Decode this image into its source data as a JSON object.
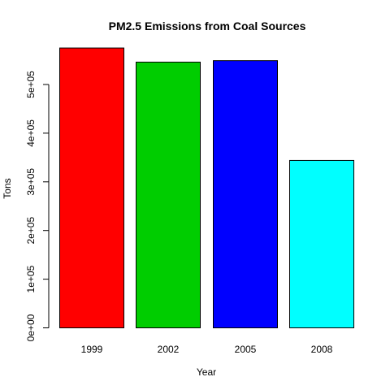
{
  "chart_data": {
    "type": "bar",
    "title": "PM2.5 Emissions from Coal Sources",
    "xlabel": "Year",
    "ylabel": "Tons",
    "categories": [
      "1999",
      "2002",
      "2005",
      "2008"
    ],
    "values": [
      575000,
      546000,
      549000,
      344000
    ],
    "bar_colors": [
      "#ff0000",
      "#00cd00",
      "#0000ff",
      "#00ffff"
    ],
    "ylim": [
      0,
      575000
    ],
    "yticks": [
      0,
      100000,
      200000,
      300000,
      400000,
      500000
    ],
    "ytick_labels": [
      "0e+00",
      "1e+05",
      "2e+05",
      "3e+05",
      "4e+05",
      "5e+05"
    ],
    "grid": false,
    "legend": "none"
  }
}
